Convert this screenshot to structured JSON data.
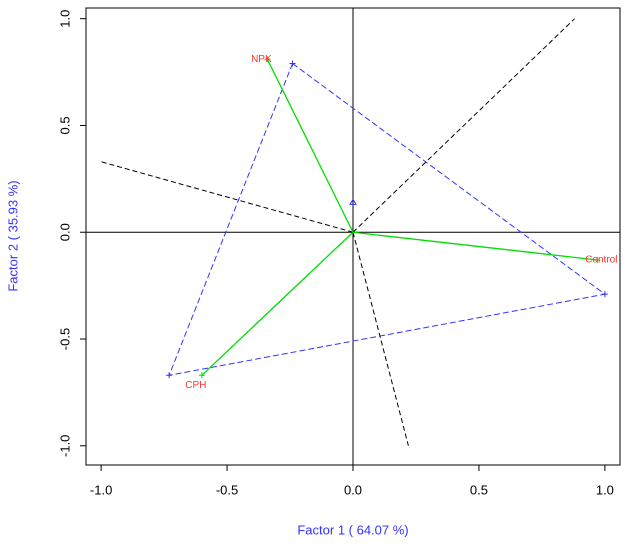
{
  "chart_data": {
    "type": "biplot",
    "xlabel": "Factor 1 ( 64.07 %)",
    "ylabel": "Factor 2 ( 35.93 %)",
    "label_color": "#3333ff",
    "xlim": [
      -1.06,
      1.06
    ],
    "ylim": [
      -1.09,
      1.05
    ],
    "xticks": [
      {
        "value": -1,
        "label": "-1.0"
      },
      -0.5,
      {
        "value": 0,
        "label": "0.0"
      },
      0.5,
      {
        "value": 1,
        "label": "1.0"
      }
    ],
    "yticks": [
      {
        "value": -1,
        "label": "-1.0"
      },
      -0.5,
      {
        "value": 0,
        "label": "0.0"
      },
      0.5,
      {
        "value": 1,
        "label": "1.0"
      }
    ],
    "points": {
      "labels": [
        "NPK",
        "Control",
        "CPH"
      ],
      "x": [
        -0.34,
        0.97,
        -0.6
      ],
      "y": [
        0.81,
        -0.13,
        -0.67
      ],
      "color": "#00dd00",
      "text_color": "#ff3333"
    },
    "polygon": {
      "x": [
        -0.24,
        1.0,
        -0.73
      ],
      "y": [
        0.79,
        -0.29,
        -0.67
      ],
      "color": "#3333ff"
    },
    "marker": {
      "x": [
        0
      ],
      "y": [
        0.14
      ],
      "color": "#3333ff"
    },
    "axes_lines": {
      "x": [
        -1.0,
        0.22,
        0.88
      ],
      "y": [
        0.33,
        -1.0,
        1.0
      ],
      "color": "#000000"
    }
  }
}
